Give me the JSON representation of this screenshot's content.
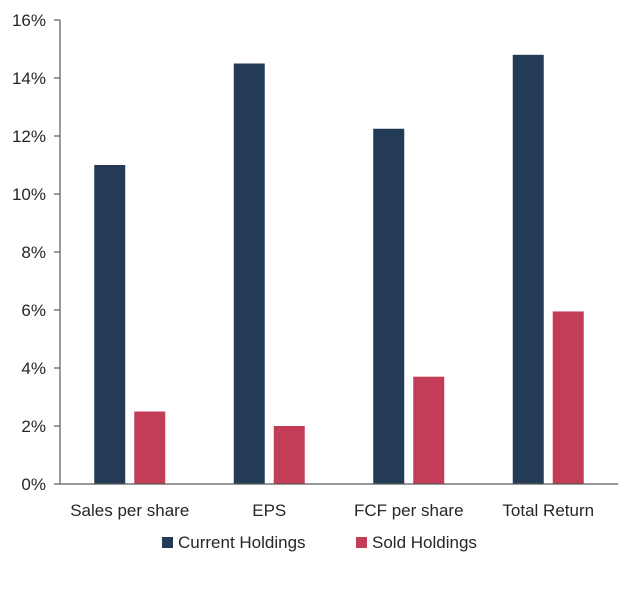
{
  "chart_data": {
    "type": "bar",
    "categories": [
      "Sales per share",
      "EPS",
      "FCF per share",
      "Total Return"
    ],
    "series": [
      {
        "name": "Current Holdings",
        "color": "#243b57",
        "values": [
          11.0,
          14.5,
          12.25,
          14.8
        ]
      },
      {
        "name": "Sold Holdings",
        "color": "#c43d58",
        "values": [
          2.5,
          2.0,
          3.7,
          5.95
        ]
      }
    ],
    "ylim": [
      0,
      16
    ],
    "yticks": [
      0,
      2,
      4,
      6,
      8,
      10,
      12,
      14,
      16
    ],
    "ytick_labels": [
      "0%",
      "2%",
      "4%",
      "6%",
      "8%",
      "10%",
      "12%",
      "14%",
      "16%"
    ],
    "grid": false,
    "legend_position": "bottom"
  }
}
